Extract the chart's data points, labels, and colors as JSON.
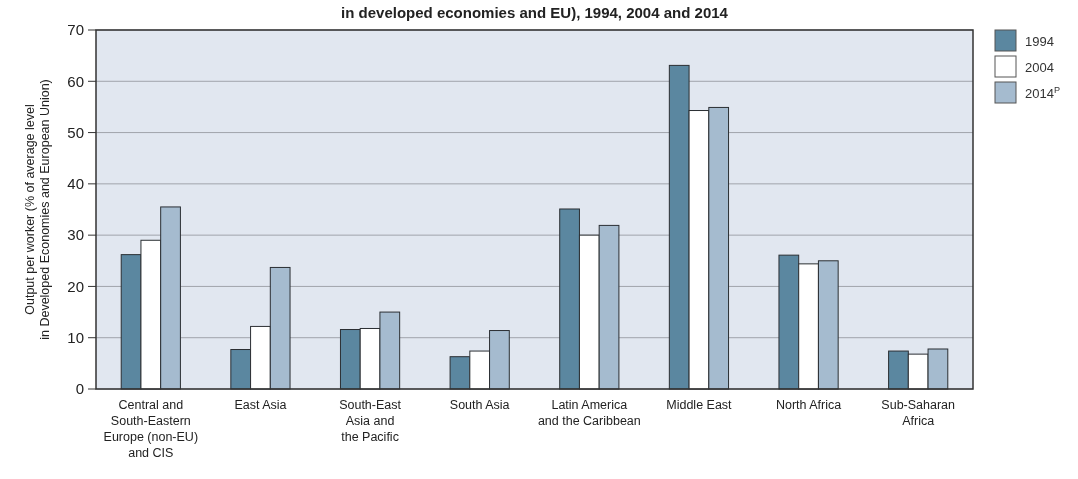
{
  "chart_data": {
    "type": "bar",
    "title": "in developed economies and EU), 1994, 2004 and 2014",
    "ylabel": "Output per worker (% of average level\nin Developed Economies and European Union)",
    "categories": [
      "Central and\nSouth-Eastern\nEurope (non-EU)\nand CIS",
      "East Asia",
      "South-East\nAsia and\nthe Pacific",
      "South Asia",
      "Latin America\nand the Caribbean",
      "Middle East",
      "North Africa",
      "Sub-Saharan\nAfrica"
    ],
    "series": [
      {
        "name": "1994",
        "color": "#5b87a0",
        "values": [
          26.2,
          7.7,
          11.6,
          6.3,
          35.1,
          63.1,
          26.1,
          7.4
        ]
      },
      {
        "name": "2004",
        "color": "#ffffff",
        "values": [
          29,
          12.2,
          11.8,
          7.4,
          30,
          54.3,
          24.4,
          6.8
        ]
      },
      {
        "name": "2014$^{P}$",
        "color": "#a5bbcf",
        "values": [
          35.5,
          23.7,
          15,
          11.4,
          31.9,
          54.9,
          25,
          7.8
        ]
      }
    ],
    "ylim": [
      0,
      70
    ],
    "yticks": [
      0,
      10,
      20,
      30,
      40,
      50,
      60,
      70
    ],
    "grid": "y",
    "legend": "top right"
  }
}
